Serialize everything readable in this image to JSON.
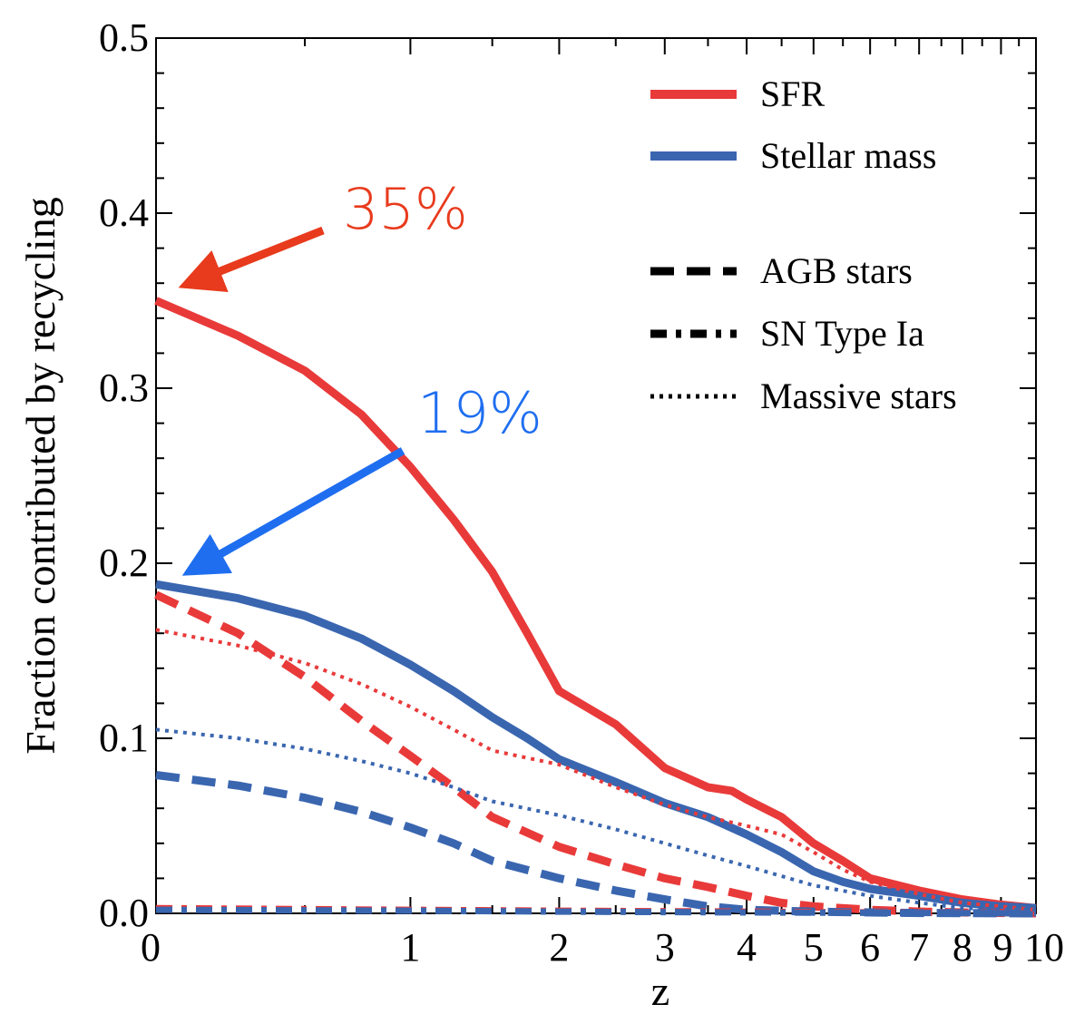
{
  "chart_data": {
    "type": "line",
    "title": "",
    "xlabel": "z",
    "ylabel": "Fraction contributed by recycling",
    "x_scale": "log(1+z)",
    "xlim": [
      0,
      10
    ],
    "ylim": [
      0,
      0.5
    ],
    "x_tick_labels": [
      "0",
      "1",
      "2",
      "3",
      "4",
      "5",
      "6",
      "7",
      "8",
      "9",
      "10"
    ],
    "y_tick_labels": [
      "0.0",
      "0.1",
      "0.2",
      "0.3",
      "0.4",
      "0.5"
    ],
    "legend": {
      "placement": "top-right",
      "color_entries": [
        {
          "label": "SFR",
          "color": "#e93a3a"
        },
        {
          "label": "Stellar mass",
          "color": "#3a66b0"
        }
      ],
      "style_entries": [
        {
          "label": "AGB stars",
          "style": "dashed"
        },
        {
          "label": "SN Type Ia",
          "style": "dashdot"
        },
        {
          "label": "Massive stars",
          "style": "dotted"
        }
      ]
    },
    "annotations": [
      {
        "text": "35%",
        "color": "#e83a1c",
        "points_to_x": 0,
        "points_to_y": 0.35
      },
      {
        "text": "19%",
        "color": "#1f6ef0",
        "points_to_x": 0,
        "points_to_y": 0.19
      }
    ],
    "series": [
      {
        "name": "SFR",
        "color": "#e93a3a",
        "style": "solid",
        "x": [
          0,
          0.25,
          0.5,
          0.75,
          1,
          1.25,
          1.5,
          1.75,
          2,
          2.5,
          3,
          3.5,
          3.8,
          4,
          4.5,
          5,
          5.5,
          6,
          7,
          8,
          9,
          10
        ],
        "y": [
          0.35,
          0.33,
          0.31,
          0.285,
          0.255,
          0.225,
          0.195,
          0.16,
          0.127,
          0.108,
          0.083,
          0.072,
          0.07,
          0.065,
          0.055,
          0.04,
          0.03,
          0.02,
          0.013,
          0.008,
          0.005,
          0.003
        ]
      },
      {
        "name": "Stellar mass",
        "color": "#3a66b0",
        "style": "solid",
        "x": [
          0,
          0.25,
          0.5,
          0.75,
          1,
          1.25,
          1.5,
          1.75,
          2,
          2.5,
          3,
          3.5,
          4,
          4.5,
          5,
          5.5,
          6,
          7,
          8,
          9,
          10
        ],
        "y": [
          0.188,
          0.18,
          0.17,
          0.157,
          0.142,
          0.127,
          0.112,
          0.1,
          0.088,
          0.075,
          0.063,
          0.055,
          0.045,
          0.035,
          0.024,
          0.018,
          0.014,
          0.01,
          0.006,
          0.004,
          0.003
        ]
      },
      {
        "name": "SFR AGB stars",
        "color": "#e93a3a",
        "style": "dashed",
        "x": [
          0,
          0.25,
          0.5,
          0.75,
          1,
          1.25,
          1.5,
          2,
          2.5,
          3,
          3.5,
          4,
          4.5,
          5,
          6,
          7,
          8,
          10
        ],
        "y": [
          0.182,
          0.16,
          0.135,
          0.11,
          0.09,
          0.072,
          0.055,
          0.038,
          0.028,
          0.02,
          0.015,
          0.01,
          0.006,
          0.004,
          0.002,
          0.001,
          0.0005,
          0.0
        ]
      },
      {
        "name": "Stellar mass AGB stars",
        "color": "#3a66b0",
        "style": "dashed",
        "x": [
          0,
          0.25,
          0.5,
          0.75,
          1,
          1.25,
          1.5,
          2,
          2.5,
          3,
          3.5,
          4,
          5,
          6,
          7,
          10
        ],
        "y": [
          0.079,
          0.073,
          0.066,
          0.058,
          0.049,
          0.04,
          0.03,
          0.02,
          0.013,
          0.008,
          0.004,
          0.002,
          0.001,
          0.0005,
          0.0002,
          0.0
        ]
      },
      {
        "name": "SFR Massive stars",
        "color": "#e93a3a",
        "style": "dotted",
        "x": [
          0,
          0.25,
          0.5,
          0.75,
          1,
          1.25,
          1.5,
          2,
          2.5,
          3,
          3.5,
          4,
          4.5,
          5,
          5.5,
          6,
          7,
          8,
          9,
          10
        ],
        "y": [
          0.162,
          0.153,
          0.143,
          0.131,
          0.118,
          0.105,
          0.093,
          0.085,
          0.072,
          0.062,
          0.055,
          0.05,
          0.045,
          0.035,
          0.025,
          0.018,
          0.011,
          0.006,
          0.004,
          0.002
        ]
      },
      {
        "name": "Stellar mass Massive stars",
        "color": "#3a66b0",
        "style": "dotted",
        "x": [
          0,
          0.25,
          0.5,
          0.75,
          1,
          1.25,
          1.5,
          2,
          2.5,
          3,
          3.5,
          4,
          5,
          6,
          7,
          8,
          10
        ],
        "y": [
          0.105,
          0.1,
          0.094,
          0.087,
          0.08,
          0.072,
          0.064,
          0.056,
          0.048,
          0.04,
          0.033,
          0.027,
          0.016,
          0.01,
          0.006,
          0.003,
          0.002
        ]
      },
      {
        "name": "SFR SN Type Ia",
        "color": "#e93a3a",
        "style": "dashdot",
        "x": [
          0,
          1,
          2,
          4,
          10
        ],
        "y": [
          0.003,
          0.002,
          0.0015,
          0.001,
          0.0
        ]
      },
      {
        "name": "Stellar mass SN Type Ia",
        "color": "#3a66b0",
        "style": "dashdot",
        "x": [
          0,
          1,
          2,
          4,
          10
        ],
        "y": [
          0.002,
          0.0015,
          0.001,
          0.0005,
          0.0
        ]
      }
    ]
  }
}
